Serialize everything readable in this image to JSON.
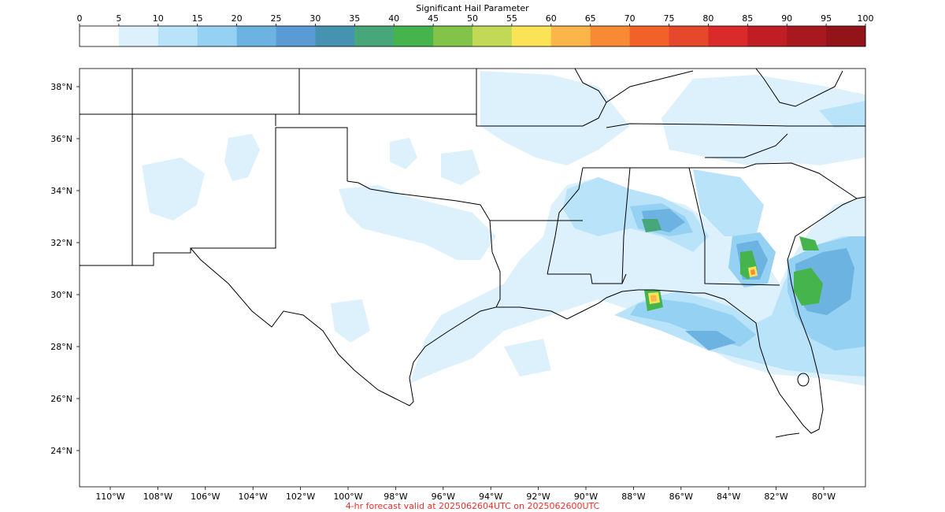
{
  "colorbar": {
    "title": "Significant Hail Parameter",
    "ticks": [
      "0",
      "5",
      "10",
      "15",
      "20",
      "25",
      "30",
      "35",
      "40",
      "45",
      "50",
      "55",
      "60",
      "65",
      "70",
      "75",
      "80",
      "85",
      "90",
      "95",
      "100"
    ],
    "colors": [
      "#ffffff",
      "#ddf1fc",
      "#b8e3f8",
      "#94d1f2",
      "#6db3e2",
      "#5a9bd6",
      "#4593b0",
      "#48a67b",
      "#46b44d",
      "#82c34a",
      "#c2d955",
      "#fbe357",
      "#fbb548",
      "#f88a35",
      "#f26127",
      "#e6482b",
      "#da2a2a",
      "#c11d24",
      "#a8191f",
      "#921419"
    ]
  },
  "map": {
    "lat_labels": [
      "38°N",
      "36°N",
      "34°N",
      "32°N",
      "30°N",
      "28°N",
      "26°N",
      "24°N"
    ],
    "lon_labels": [
      "110°W",
      "108°W",
      "106°W",
      "104°W",
      "102°W",
      "100°W",
      "98°W",
      "96°W",
      "94°W",
      "92°W",
      "90°W",
      "88°W",
      "86°W",
      "84°W",
      "82°W",
      "80°W"
    ]
  },
  "footer": {
    "text": "4-hr forecast valid at 2025062604UTC on 2025062600UTC",
    "color": "#e8322c"
  }
}
